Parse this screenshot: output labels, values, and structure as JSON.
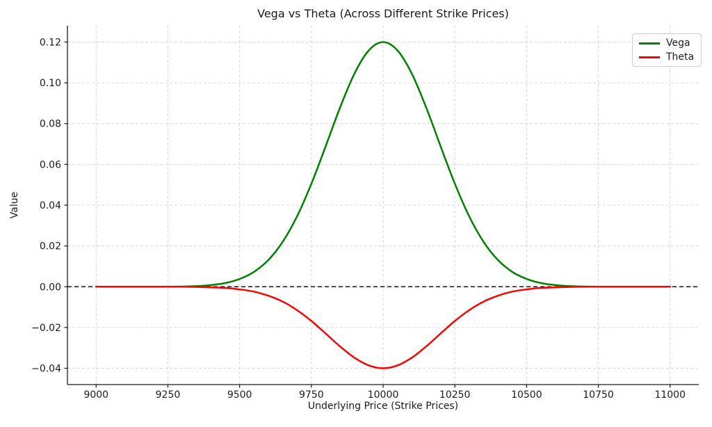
{
  "figure": {
    "title": "Vega vs Theta (Across Different Strike Prices)",
    "xlabel": "Underlying Price (Strike Prices)",
    "ylabel": "Value",
    "background_color": "#ffffff",
    "grid_color": "#d7d7d7",
    "spine_color": "#1a1a1a"
  },
  "legend": {
    "position": "upper right",
    "items": [
      {
        "label": "Vega",
        "color": "#008000"
      },
      {
        "label": "Theta",
        "color": "#ff0000"
      }
    ]
  },
  "chart_data": {
    "type": "line",
    "title": "Vega vs Theta (Across Different Strike Prices)",
    "xlabel": "Underlying Price (Strike Prices)",
    "ylabel": "Value",
    "xlim": [
      8900,
      11100
    ],
    "ylim": [
      -0.048,
      0.128
    ],
    "grid": true,
    "legend_position": "upper right",
    "x_tick_values": [
      9000,
      9250,
      9500,
      9750,
      10000,
      10250,
      10500,
      10750,
      11000
    ],
    "x_tick_labels": [
      "9000",
      "9250",
      "9500",
      "9750",
      "10000",
      "10250",
      "10500",
      "10750",
      "11000"
    ],
    "y_tick_values": [
      -0.04,
      -0.02,
      0.0,
      0.02,
      0.04,
      0.06,
      0.08,
      0.1,
      0.12
    ],
    "y_tick_labels": [
      "−0.04",
      "−0.02",
      "0.00",
      "0.02",
      "0.04",
      "0.06",
      "0.08",
      "0.10",
      "0.12"
    ],
    "reference_line": {
      "y": 0.0,
      "color": "#000000",
      "style": "dashed"
    },
    "x": [
      9000,
      9050,
      9100,
      9150,
      9200,
      9250,
      9300,
      9350,
      9400,
      9450,
      9500,
      9550,
      9600,
      9650,
      9700,
      9750,
      9800,
      9850,
      9900,
      9950,
      10000,
      10050,
      10100,
      10150,
      10200,
      10250,
      10300,
      10350,
      10400,
      10450,
      10500,
      10550,
      10600,
      10650,
      10700,
      10750,
      10800,
      10850,
      10900,
      10950,
      11000
    ],
    "series": [
      {
        "name": "Vega",
        "color": "#008000",
        "peak": {
          "x": 10000,
          "y": 0.12
        },
        "values": [
          0.0,
          0.0,
          0.0,
          0.0,
          0.0,
          0.0,
          0.0001,
          0.0003,
          0.0008,
          0.0018,
          0.0038,
          0.0073,
          0.0131,
          0.022,
          0.0345,
          0.0505,
          0.069,
          0.0879,
          0.1045,
          0.1159,
          0.12,
          0.1159,
          0.1045,
          0.0879,
          0.069,
          0.0505,
          0.0345,
          0.022,
          0.0131,
          0.0073,
          0.0038,
          0.0018,
          0.0008,
          0.0003,
          0.0001,
          0.0,
          0.0,
          0.0,
          0.0,
          0.0,
          0.0
        ]
      },
      {
        "name": "Theta",
        "color": "#ff0000",
        "peak": {
          "x": 10000,
          "y": -0.04
        },
        "values": [
          0.0,
          0.0,
          0.0,
          0.0,
          0.0,
          0.0,
          0.0,
          -0.0001,
          -0.0003,
          -0.0006,
          -0.0013,
          -0.0024,
          -0.0044,
          -0.0073,
          -0.0115,
          -0.0168,
          -0.023,
          -0.0293,
          -0.0348,
          -0.0386,
          -0.04,
          -0.0386,
          -0.0348,
          -0.0293,
          -0.023,
          -0.0168,
          -0.0115,
          -0.0073,
          -0.0044,
          -0.0024,
          -0.0013,
          -0.0006,
          -0.0003,
          -0.0001,
          0.0,
          0.0,
          0.0,
          0.0,
          0.0,
          0.0,
          0.0
        ]
      }
    ]
  }
}
